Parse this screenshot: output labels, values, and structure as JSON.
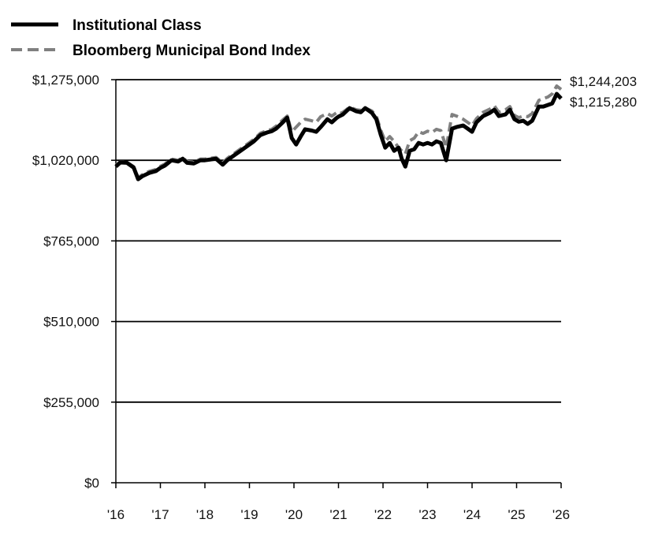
{
  "chart_data": {
    "type": "line",
    "title": "",
    "xlabel": "",
    "ylabel": "",
    "xlim": [
      2016,
      2026
    ],
    "ylim": [
      0,
      1275000
    ],
    "x_ticks": [
      {
        "x": 2016,
        "label": "'16"
      },
      {
        "x": 2017,
        "label": "'17"
      },
      {
        "x": 2018,
        "label": "'18"
      },
      {
        "x": 2019,
        "label": "'19"
      },
      {
        "x": 2020,
        "label": "'20"
      },
      {
        "x": 2021,
        "label": "'21"
      },
      {
        "x": 2022,
        "label": "'22"
      },
      {
        "x": 2023,
        "label": "'23"
      },
      {
        "x": 2024,
        "label": "'24"
      },
      {
        "x": 2025,
        "label": "'25"
      },
      {
        "x": 2026,
        "label": "'26"
      }
    ],
    "y_ticks": [
      {
        "y": 0,
        "label": "$0"
      },
      {
        "y": 255000,
        "label": "$255,000"
      },
      {
        "y": 510000,
        "label": "$510,000"
      },
      {
        "y": 765000,
        "label": "$765,000"
      },
      {
        "y": 1020000,
        "label": "$1,020,000"
      },
      {
        "y": 1275000,
        "label": "$1,275,000"
      }
    ],
    "grid": "horizontal",
    "legend_position": "top-left",
    "series": [
      {
        "name": "Institutional Class",
        "color": "#000000",
        "style": "solid",
        "end_label": "$1,215,280",
        "x": [
          2016.0,
          2016.1,
          2016.25,
          2016.4,
          2016.5,
          2016.6,
          2016.75,
          2016.9,
          2017.0,
          2017.1,
          2017.25,
          2017.4,
          2017.5,
          2017.6,
          2017.75,
          2017.9,
          2018.0,
          2018.1,
          2018.25,
          2018.4,
          2018.5,
          2018.6,
          2018.75,
          2018.9,
          2019.0,
          2019.1,
          2019.25,
          2019.4,
          2019.5,
          2019.6,
          2019.75,
          2019.85,
          2019.95,
          2020.05,
          2020.15,
          2020.25,
          2020.4,
          2020.5,
          2020.6,
          2020.75,
          2020.85,
          2020.95,
          2021.0,
          2021.1,
          2021.25,
          2021.4,
          2021.5,
          2021.6,
          2021.75,
          2021.85,
          2021.95,
          2022.05,
          2022.15,
          2022.25,
          2022.35,
          2022.42,
          2022.5,
          2022.6,
          2022.7,
          2022.8,
          2022.9,
          2023.0,
          2023.1,
          2023.2,
          2023.3,
          2023.42,
          2023.55,
          2023.65,
          2023.8,
          2023.9,
          2024.0,
          2024.1,
          2024.25,
          2024.4,
          2024.5,
          2024.6,
          2024.75,
          2024.85,
          2024.95,
          2025.05,
          2025.15,
          2025.25,
          2025.35,
          2025.5,
          2025.6,
          2025.7,
          2025.8,
          2025.9,
          2026.0
        ],
        "y": [
          1000000,
          1013000,
          1012000,
          997000,
          960000,
          970000,
          980000,
          986000,
          996000,
          1003000,
          1020000,
          1016000,
          1025000,
          1012000,
          1010000,
          1020000,
          1020000,
          1022000,
          1025000,
          1006000,
          1020000,
          1030000,
          1045000,
          1060000,
          1070000,
          1080000,
          1100000,
          1108000,
          1112000,
          1120000,
          1140000,
          1155000,
          1090000,
          1070000,
          1095000,
          1118000,
          1114000,
          1110000,
          1125000,
          1150000,
          1140000,
          1153000,
          1158000,
          1165000,
          1185000,
          1175000,
          1172000,
          1185000,
          1170000,
          1150000,
          1100000,
          1060000,
          1075000,
          1050000,
          1060000,
          1025000,
          1000000,
          1050000,
          1055000,
          1075000,
          1070000,
          1075000,
          1070000,
          1080000,
          1075000,
          1020000,
          1120000,
          1125000,
          1130000,
          1120000,
          1110000,
          1140000,
          1160000,
          1170000,
          1180000,
          1160000,
          1165000,
          1180000,
          1150000,
          1142000,
          1145000,
          1135000,
          1145000,
          1190000,
          1190000,
          1195000,
          1200000,
          1230000,
          1215280
        ]
      },
      {
        "name": "Bloomberg Municipal Bond Index",
        "color": "#808080",
        "style": "dashed",
        "end_label": "$1,244,203",
        "x": [
          2016.0,
          2016.1,
          2016.25,
          2016.4,
          2016.5,
          2016.6,
          2016.75,
          2016.9,
          2017.0,
          2017.1,
          2017.25,
          2017.4,
          2017.5,
          2017.6,
          2017.75,
          2017.9,
          2018.0,
          2018.1,
          2018.25,
          2018.4,
          2018.5,
          2018.6,
          2018.75,
          2018.9,
          2019.0,
          2019.1,
          2019.25,
          2019.4,
          2019.5,
          2019.6,
          2019.75,
          2019.85,
          2019.95,
          2020.05,
          2020.15,
          2020.25,
          2020.4,
          2020.5,
          2020.6,
          2020.75,
          2020.85,
          2020.95,
          2021.0,
          2021.1,
          2021.25,
          2021.4,
          2021.5,
          2021.6,
          2021.75,
          2021.85,
          2021.95,
          2022.05,
          2022.15,
          2022.25,
          2022.35,
          2022.42,
          2022.5,
          2022.6,
          2022.7,
          2022.8,
          2022.9,
          2023.0,
          2023.1,
          2023.2,
          2023.3,
          2023.42,
          2023.55,
          2023.65,
          2023.8,
          2023.9,
          2024.0,
          2024.1,
          2024.25,
          2024.4,
          2024.5,
          2024.6,
          2024.75,
          2024.85,
          2024.95,
          2025.05,
          2025.15,
          2025.25,
          2025.35,
          2025.5,
          2025.6,
          2025.7,
          2025.8,
          2025.9,
          2026.0
        ],
        "y": [
          1005000,
          1015000,
          1014000,
          1000000,
          965000,
          975000,
          985000,
          991000,
          1001000,
          1008000,
          1024000,
          1020000,
          1029000,
          1016000,
          1014000,
          1024000,
          1024000,
          1026000,
          1029000,
          1012000,
          1026000,
          1036000,
          1051000,
          1066000,
          1076000,
          1086000,
          1106000,
          1114000,
          1118000,
          1128000,
          1148000,
          1160000,
          1110000,
          1125000,
          1140000,
          1150000,
          1145000,
          1140000,
          1158000,
          1168000,
          1160000,
          1170000,
          1166000,
          1172000,
          1188000,
          1180000,
          1178000,
          1186000,
          1176000,
          1160000,
          1115000,
          1080000,
          1095000,
          1080000,
          1060000,
          1050000,
          1040000,
          1082000,
          1090000,
          1110000,
          1105000,
          1112000,
          1108000,
          1118000,
          1114000,
          1060000,
          1165000,
          1160000,
          1150000,
          1140000,
          1130000,
          1152000,
          1172000,
          1182000,
          1192000,
          1172000,
          1180000,
          1190000,
          1162000,
          1155000,
          1160000,
          1158000,
          1168000,
          1210000,
          1215000,
          1220000,
          1230000,
          1255000,
          1244203
        ]
      }
    ]
  }
}
